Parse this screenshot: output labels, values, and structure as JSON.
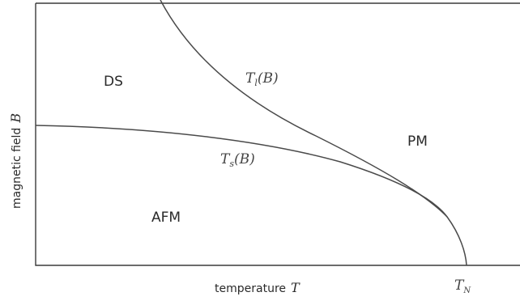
{
  "regions": {
    "ds": "DS",
    "pm": "PM",
    "afm": "AFM"
  },
  "curves": {
    "upper": {
      "symbol": "T",
      "subscript": "l",
      "argument": "(B)"
    },
    "lower": {
      "symbol": "T",
      "subscript": "s",
      "argument": "(B)"
    }
  },
  "axes": {
    "x": {
      "text": "temperature",
      "symbol": "T"
    },
    "y": {
      "text": "magnetic field",
      "symbol": "B"
    }
  },
  "point_label": {
    "symbol": "T",
    "subscript": "N"
  }
}
